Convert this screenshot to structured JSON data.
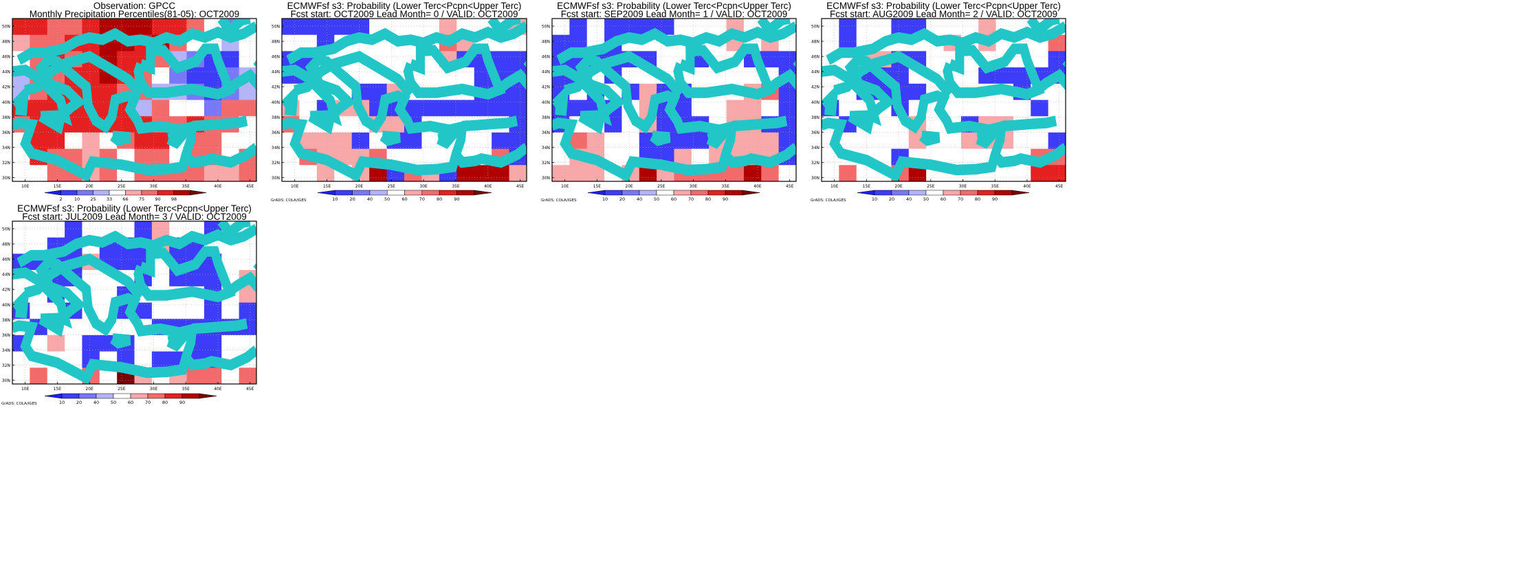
{
  "panels": [
    {
      "title_line1": "Observation: GPCC",
      "title_line2": "Monthly Precipitation Percentiles(81-05): OCT2009",
      "colorbar_labels": [
        "2",
        "10",
        "25",
        "33",
        "66",
        "75",
        "90",
        "98"
      ],
      "footer": ""
    },
    {
      "title_line1": "ECMWFsf s3: Probability (Lower Terc<Pcpn<Upper Terc)",
      "title_line2": "Fcst start: OCT2009   Lead Month= 0 / VALID: OCT2009",
      "colorbar_labels": [
        "10",
        "20",
        "40",
        "50",
        "60",
        "70",
        "80",
        "90"
      ],
      "footer": "GrADS: COLA/IGES"
    },
    {
      "title_line1": "ECMWFsf s3: Probability (Lower Terc<Pcpn<Upper Terc)",
      "title_line2": "Fcst start: SEP2009   Lead Month= 1 / VALID: OCT2009",
      "colorbar_labels": [
        "10",
        "20",
        "40",
        "50",
        "60",
        "70",
        "80",
        "90"
      ],
      "footer": "GrADS: COLA/IGES"
    },
    {
      "title_line1": "ECMWFsf s3: Probability (Lower Terc<Pcpn<Upper Terc)",
      "title_line2": "Fcst start: AUG2009   Lead Month= 2 / VALID: OCT2009",
      "colorbar_labels": [
        "10",
        "20",
        "40",
        "50",
        "60",
        "70",
        "80",
        "90"
      ],
      "footer": "GrADS: COLA/IGES"
    },
    {
      "title_line1": "ECMWFsf s3: Probability (Lower Terc<Pcpn<Upper Terc)",
      "title_line2": "Fcst start: JUL2009   Lead Month= 3 / VALID: OCT2009",
      "colorbar_labels": [
        "10",
        "20",
        "40",
        "50",
        "60",
        "70",
        "80",
        "90"
      ],
      "footer": "GrADS: COLA/IGES"
    }
  ],
  "lat_labels": [
    "50N",
    "48N",
    "46N",
    "44N",
    "42N",
    "40N",
    "38N",
    "36N",
    "34N",
    "32N",
    "30N"
  ],
  "lon_labels": [
    "10E",
    "15E",
    "20E",
    "25E",
    "30E",
    "35E",
    "40E",
    "45E"
  ],
  "colors": {
    "coast": "#22c6c6",
    "frame": "#000000",
    "grid": "#b0b0b0",
    "palette": [
      "#1e1efa",
      "#3c3cfa",
      "#7878f8",
      "#b4b4f8",
      "#ffffff",
      "#f8a8a8",
      "#f26a6a",
      "#e42020",
      "#b00000",
      "#780000"
    ]
  },
  "map_extent": {
    "lon": [
      8,
      46
    ],
    "lat": [
      29.5,
      51
    ]
  },
  "grid_cells": {
    "cols": 14,
    "rows": 10
  },
  "chart_data": [
    {
      "type": "heatmap",
      "title": "Observation: GPCC",
      "color_index_grid": [
        [
          7,
          7,
          6,
          6,
          7,
          8,
          8,
          8,
          7,
          7,
          6,
          4,
          2,
          4
        ],
        [
          5,
          6,
          6,
          7,
          7,
          8,
          8,
          7,
          8,
          6,
          4,
          4,
          3,
          4
        ],
        [
          4,
          6,
          7,
          6,
          7,
          8,
          7,
          7,
          6,
          3,
          2,
          1,
          1,
          4
        ],
        [
          3,
          6,
          6,
          7,
          7,
          8,
          7,
          6,
          4,
          2,
          1,
          1,
          2,
          3
        ],
        [
          3,
          6,
          7,
          7,
          7,
          7,
          6,
          6,
          3,
          3,
          2,
          1,
          2,
          3
        ],
        [
          7,
          7,
          7,
          7,
          7,
          7,
          7,
          3,
          6,
          4,
          4,
          2,
          6,
          6
        ],
        [
          6,
          7,
          7,
          7,
          7,
          7,
          7,
          7,
          6,
          6,
          7,
          6,
          6,
          4
        ],
        [
          4,
          7,
          7,
          4,
          5,
          4,
          6,
          7,
          7,
          4,
          6,
          6,
          4,
          4
        ],
        [
          4,
          7,
          6,
          6,
          5,
          6,
          4,
          6,
          6,
          4,
          6,
          6,
          4,
          6
        ],
        [
          4,
          4,
          6,
          6,
          5,
          6,
          4,
          6,
          6,
          6,
          6,
          5,
          5,
          6
        ]
      ]
    },
    {
      "type": "heatmap",
      "title": "Lead Month= 0",
      "color_index_grid": [
        [
          1,
          1,
          1,
          1,
          1,
          4,
          4,
          4,
          4,
          5,
          4,
          4,
          4,
          5
        ],
        [
          4,
          4,
          1,
          4,
          4,
          4,
          4,
          4,
          4,
          6,
          5,
          4,
          4,
          4
        ],
        [
          1,
          1,
          4,
          4,
          4,
          4,
          4,
          4,
          4,
          5,
          1,
          1,
          1,
          1
        ],
        [
          1,
          1,
          4,
          4,
          4,
          4,
          4,
          4,
          4,
          4,
          4,
          1,
          1,
          1
        ],
        [
          4,
          4,
          4,
          4,
          1,
          1,
          5,
          4,
          4,
          4,
          4,
          1,
          1,
          1
        ],
        [
          5,
          4,
          1,
          5,
          5,
          1,
          1,
          1,
          1,
          1,
          1,
          1,
          1,
          1
        ],
        [
          6,
          4,
          4,
          4,
          4,
          5,
          5,
          1,
          4,
          4,
          4,
          4,
          4,
          1
        ],
        [
          4,
          5,
          5,
          5,
          1,
          4,
          1,
          1,
          4,
          4,
          4,
          4,
          1,
          1
        ],
        [
          4,
          6,
          5,
          5,
          5,
          6,
          4,
          4,
          4,
          4,
          4,
          4,
          6,
          1
        ],
        [
          4,
          4,
          5,
          4,
          5,
          8,
          1,
          6,
          5,
          1,
          8,
          8,
          8,
          5
        ]
      ]
    },
    {
      "type": "heatmap",
      "title": "Lead Month= 1",
      "color_index_grid": [
        [
          4,
          1,
          4,
          1,
          1,
          1,
          1,
          4,
          4,
          4,
          5,
          4,
          4,
          4
        ],
        [
          1,
          1,
          4,
          1,
          4,
          4,
          4,
          4,
          4,
          4,
          5,
          4,
          5,
          4
        ],
        [
          1,
          1,
          1,
          1,
          1,
          1,
          4,
          4,
          1,
          4,
          4,
          1,
          1,
          1
        ],
        [
          1,
          1,
          4,
          1,
          4,
          4,
          4,
          4,
          4,
          4,
          4,
          4,
          4,
          1
        ],
        [
          1,
          4,
          1,
          4,
          1,
          5,
          1,
          1,
          4,
          4,
          4,
          5,
          6,
          1
        ],
        [
          1,
          1,
          1,
          1,
          4,
          5,
          1,
          1,
          4,
          4,
          5,
          5,
          4,
          1
        ],
        [
          1,
          4,
          4,
          1,
          4,
          5,
          1,
          1,
          1,
          4,
          5,
          5,
          1,
          1
        ],
        [
          4,
          6,
          5,
          4,
          4,
          1,
          1,
          1,
          1,
          5,
          5,
          5,
          5,
          1
        ],
        [
          4,
          5,
          5,
          4,
          4,
          1,
          1,
          5,
          4,
          5,
          5,
          5,
          5,
          1
        ],
        [
          5,
          5,
          5,
          4,
          5,
          8,
          5,
          6,
          6,
          6,
          6,
          8,
          6,
          4
        ]
      ]
    },
    {
      "type": "heatmap",
      "title": "Lead Month= 2",
      "color_index_grid": [
        [
          4,
          1,
          4,
          4,
          1,
          1,
          4,
          4,
          4,
          5,
          4,
          4,
          4,
          4
        ],
        [
          4,
          1,
          4,
          4,
          4,
          4,
          4,
          5,
          4,
          5,
          4,
          4,
          4,
          6
        ],
        [
          4,
          4,
          5,
          5,
          1,
          1,
          4,
          4,
          4,
          4,
          4,
          4,
          4,
          1
        ],
        [
          4,
          4,
          1,
          1,
          1,
          4,
          4,
          4,
          4,
          1,
          1,
          1,
          1,
          1
        ],
        [
          4,
          4,
          1,
          1,
          1,
          1,
          4,
          4,
          4,
          4,
          4,
          1,
          4,
          4
        ],
        [
          1,
          4,
          4,
          4,
          1,
          4,
          4,
          4,
          4,
          4,
          4,
          4,
          1,
          4
        ],
        [
          4,
          1,
          4,
          4,
          4,
          5,
          4,
          4,
          1,
          5,
          5,
          4,
          4,
          4
        ],
        [
          4,
          4,
          4,
          4,
          4,
          5,
          4,
          4,
          5,
          5,
          5,
          4,
          4,
          1
        ],
        [
          4,
          4,
          4,
          4,
          1,
          4,
          4,
          4,
          4,
          4,
          4,
          4,
          6,
          6
        ],
        [
          4,
          6,
          4,
          4,
          6,
          8,
          4,
          4,
          4,
          4,
          4,
          4,
          7,
          7
        ]
      ]
    },
    {
      "type": "heatmap",
      "title": "Lead Month= 3",
      "color_index_grid": [
        [
          4,
          4,
          4,
          1,
          4,
          4,
          4,
          1,
          5,
          4,
          4,
          1,
          4,
          4
        ],
        [
          4,
          4,
          1,
          1,
          4,
          1,
          1,
          1,
          5,
          1,
          1,
          4,
          4,
          4
        ],
        [
          1,
          1,
          1,
          1,
          5,
          1,
          1,
          1,
          4,
          1,
          1,
          1,
          4,
          4
        ],
        [
          4,
          4,
          1,
          1,
          4,
          4,
          4,
          1,
          4,
          1,
          1,
          1,
          4,
          5
        ],
        [
          4,
          4,
          1,
          4,
          4,
          4,
          1,
          4,
          4,
          4,
          4,
          1,
          4,
          5
        ],
        [
          1,
          4,
          4,
          1,
          4,
          4,
          1,
          1,
          4,
          4,
          4,
          1,
          4,
          1
        ],
        [
          4,
          1,
          4,
          4,
          4,
          4,
          4,
          4,
          1,
          1,
          1,
          1,
          1,
          1
        ],
        [
          1,
          4,
          5,
          4,
          1,
          1,
          1,
          4,
          4,
          4,
          1,
          1,
          4,
          4
        ],
        [
          4,
          4,
          4,
          4,
          1,
          4,
          1,
          4,
          1,
          1,
          1,
          1,
          4,
          4
        ],
        [
          4,
          6,
          4,
          4,
          6,
          4,
          9,
          5,
          4,
          5,
          6,
          6,
          4,
          6
        ]
      ]
    }
  ]
}
